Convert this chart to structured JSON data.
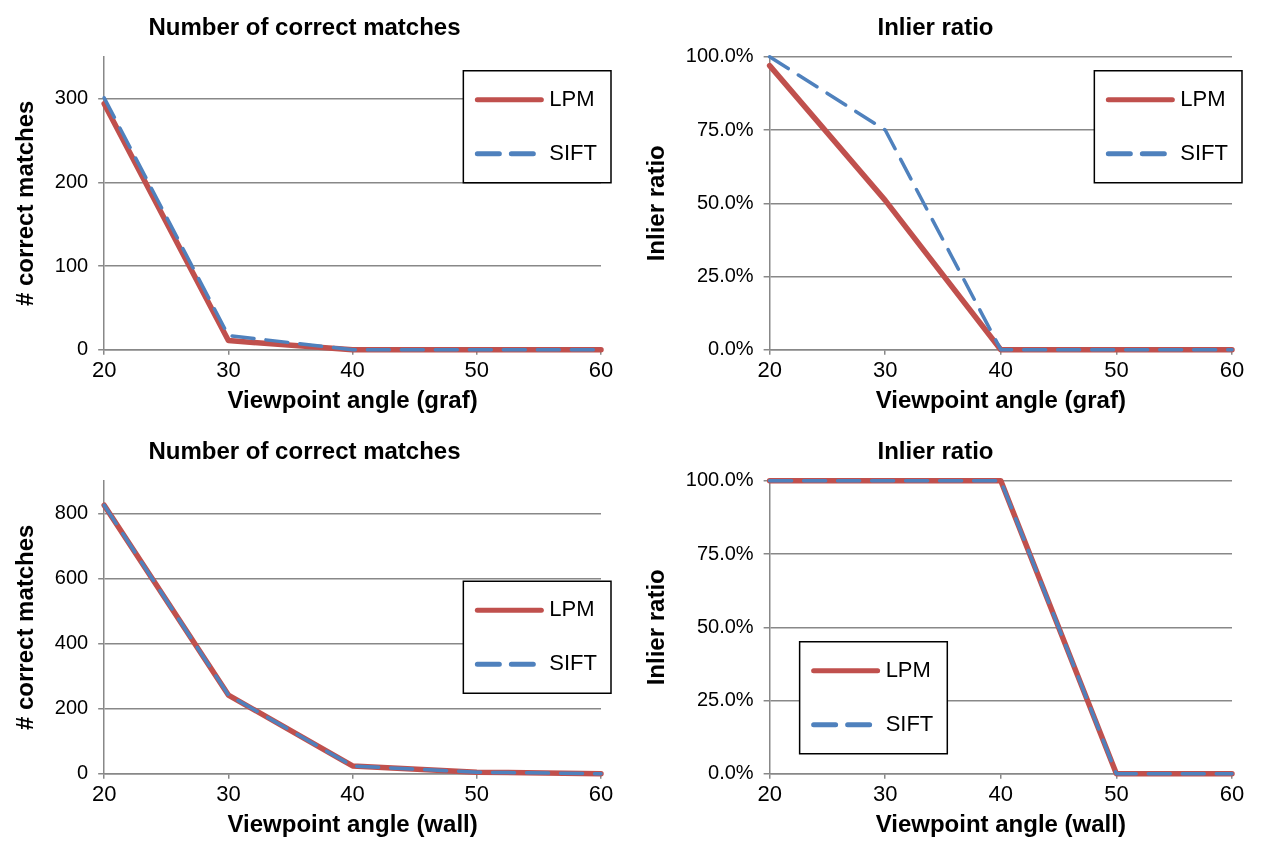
{
  "chart_data": [
    {
      "type": "line",
      "title": "Number of correct matches",
      "xlabel": "Viewpoint angle (graf)",
      "ylabel": "# correct matches",
      "x": [
        20,
        30,
        40,
        50,
        60
      ],
      "xlim": [
        20,
        60
      ],
      "xticks": [
        20,
        30,
        40,
        50,
        60
      ],
      "ylim": [
        0,
        350
      ],
      "yticks": [
        0,
        100,
        200,
        300
      ],
      "grid": "y",
      "legend": "top right",
      "marker": "none",
      "series": [
        {
          "name": "LPM",
          "color": "#c0504d",
          "line_style": "solid",
          "values": [
            294,
            11,
            0,
            0,
            0
          ]
        },
        {
          "name": "SIFT",
          "color": "#4f81bd",
          "line_style": "dashed",
          "values": [
            301,
            17,
            0,
            0,
            0
          ]
        }
      ]
    },
    {
      "type": "line",
      "title": "Inlier ratio",
      "xlabel": "Viewpoint angle (graf)",
      "ylabel": "Inlier ratio",
      "x": [
        20,
        30,
        40,
        50,
        60
      ],
      "xlim": [
        20,
        60
      ],
      "xticks": [
        20,
        30,
        40,
        50,
        60
      ],
      "ylim": [
        0,
        100
      ],
      "yticks": [
        {
          "value": 0,
          "label": "0.0%"
        },
        {
          "value": 25,
          "label": "25.0%"
        },
        {
          "value": 50,
          "label": "50.0%"
        },
        {
          "value": 75,
          "label": "75.0%"
        },
        {
          "value": 100,
          "label": "100.0%"
        }
      ],
      "grid": "y",
      "legend": "top right",
      "marker": "none",
      "series": [
        {
          "name": "LPM",
          "color": "#c0504d",
          "line_style": "solid",
          "values": [
            97,
            51,
            0,
            0,
            0
          ]
        },
        {
          "name": "SIFT",
          "color": "#4f81bd",
          "line_style": "dashed",
          "values": [
            100,
            75,
            0,
            0,
            0
          ]
        }
      ]
    },
    {
      "type": "line",
      "title": "Number of correct matches",
      "xlabel": "Viewpoint angle (wall)",
      "ylabel": "# correct matches",
      "x": [
        20,
        30,
        40,
        50,
        60
      ],
      "xlim": [
        20,
        60
      ],
      "xticks": [
        20,
        30,
        40,
        50,
        60
      ],
      "ylim": [
        0,
        900
      ],
      "yticks": [
        0,
        200,
        400,
        600,
        800
      ],
      "grid": "y",
      "legend": "right",
      "marker": "none",
      "series": [
        {
          "name": "LPM",
          "color": "#c0504d",
          "line_style": "solid",
          "values": [
            825,
            242,
            24,
            5,
            0
          ]
        },
        {
          "name": "SIFT",
          "color": "#4f81bd",
          "line_style": "dashed",
          "values": [
            825,
            242,
            24,
            5,
            0
          ]
        }
      ]
    },
    {
      "type": "line",
      "title": "Inlier ratio",
      "xlabel": "Viewpoint angle (wall)",
      "ylabel": "Inlier ratio",
      "x": [
        20,
        30,
        40,
        50,
        60
      ],
      "xlim": [
        20,
        60
      ],
      "xticks": [
        20,
        30,
        40,
        50,
        60
      ],
      "ylim": [
        0,
        100
      ],
      "yticks": [
        {
          "value": 0,
          "label": "0.0%"
        },
        {
          "value": 25,
          "label": "25.0%"
        },
        {
          "value": 50,
          "label": "50.0%"
        },
        {
          "value": 75,
          "label": "75.0%"
        },
        {
          "value": 100,
          "label": "100.0%"
        }
      ],
      "grid": "y",
      "legend": "bottom left",
      "marker": "none",
      "series": [
        {
          "name": "LPM",
          "color": "#c0504d",
          "line_style": "solid",
          "values": [
            100,
            100,
            100,
            0,
            0
          ]
        },
        {
          "name": "SIFT",
          "color": "#4f81bd",
          "line_style": "dashed",
          "values": [
            100,
            100,
            100,
            0,
            0
          ]
        }
      ]
    }
  ]
}
